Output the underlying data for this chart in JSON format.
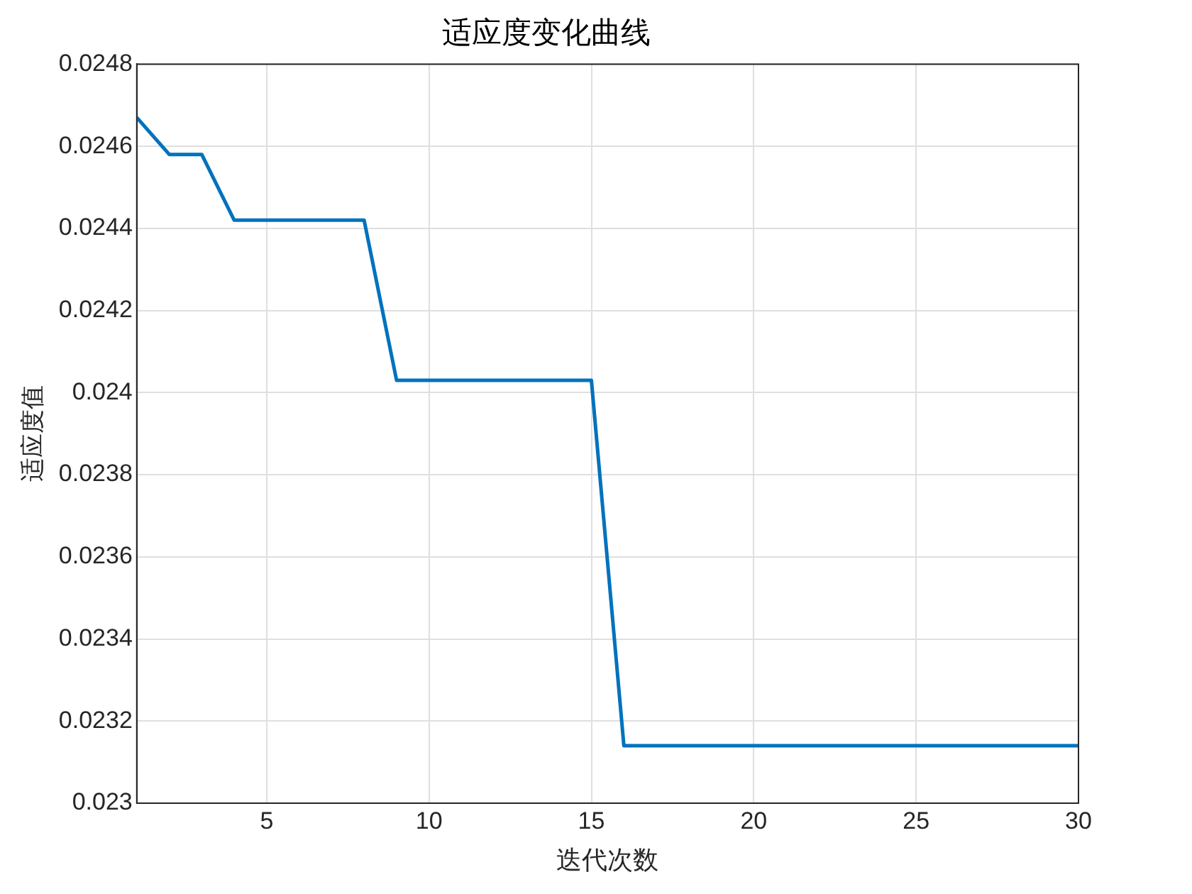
{
  "chart_data": {
    "type": "line",
    "title": "适应度变化曲线",
    "xlabel": "迭代次数",
    "ylabel": "适应度值",
    "x": [
      1,
      2,
      3,
      4,
      5,
      6,
      7,
      8,
      9,
      10,
      11,
      12,
      13,
      14,
      15,
      16,
      17,
      18,
      19,
      20,
      21,
      22,
      23,
      24,
      25,
      26,
      27,
      28,
      29,
      30
    ],
    "series": [
      {
        "color": "#0072bd",
        "values": [
          0.02467,
          0.02458,
          0.02458,
          0.02442,
          0.02442,
          0.02442,
          0.02442,
          0.02442,
          0.02403,
          0.02403,
          0.02403,
          0.02403,
          0.02403,
          0.02403,
          0.02403,
          0.02314,
          0.02314,
          0.02314,
          0.02314,
          0.02314,
          0.02314,
          0.02314,
          0.02314,
          0.02314,
          0.02314,
          0.02314,
          0.02314,
          0.02314,
          0.02314,
          0.02314
        ]
      }
    ],
    "xlim": [
      1,
      30
    ],
    "xticks": [
      5,
      10,
      15,
      20,
      25,
      30
    ],
    "ylim": [
      0.023,
      0.0248
    ],
    "yticks": [
      0.023,
      0.0232,
      0.0234,
      0.0236,
      0.0238,
      0.024,
      0.0242,
      0.0244,
      0.0246,
      0.0248
    ],
    "grid": true,
    "legend": false,
    "marker": "none",
    "line_style": "solid"
  }
}
